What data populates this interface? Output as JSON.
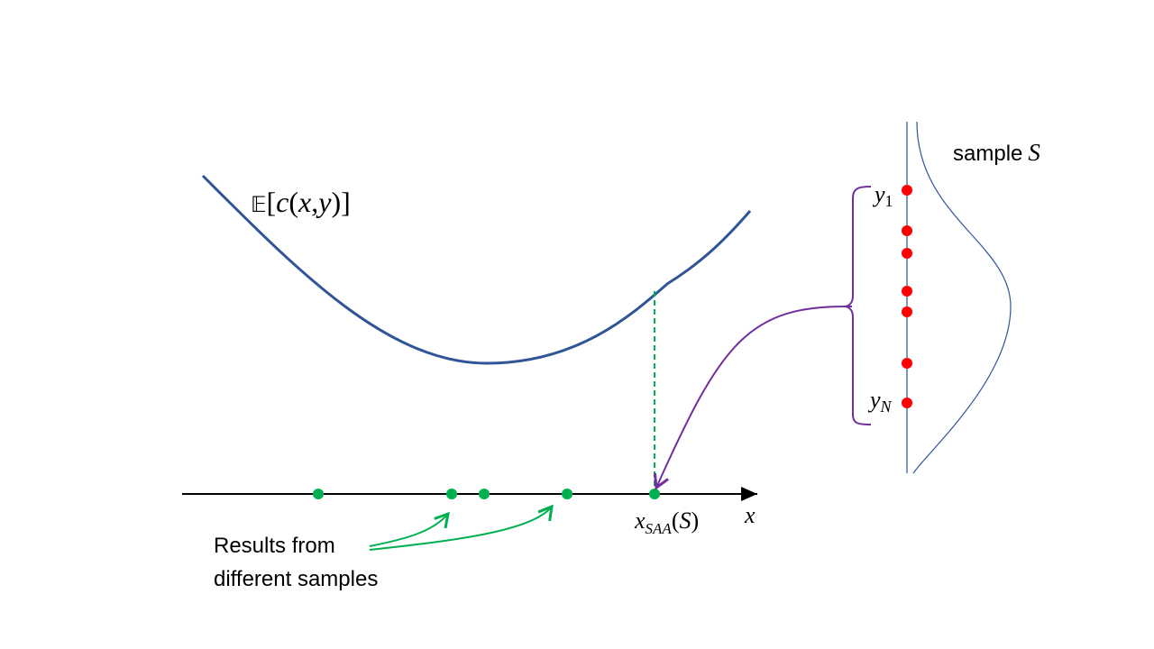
{
  "curve_label": [
    "𝔼",
    "[",
    "c",
    "(",
    "x",
    ",",
    "y",
    ")",
    "]"
  ],
  "sample_label": {
    "word": "sample",
    "symbol": "S"
  },
  "first_sample": {
    "symbol": "y",
    "index": "1"
  },
  "last_sample": {
    "symbol": "y",
    "index": "N"
  },
  "axis_label": "x",
  "solution_label": {
    "symbol": "x",
    "subscript": "SAA",
    "open": "(",
    "arg": "S",
    "close": ")"
  },
  "caption": [
    "Results from",
    "different samples"
  ]
}
